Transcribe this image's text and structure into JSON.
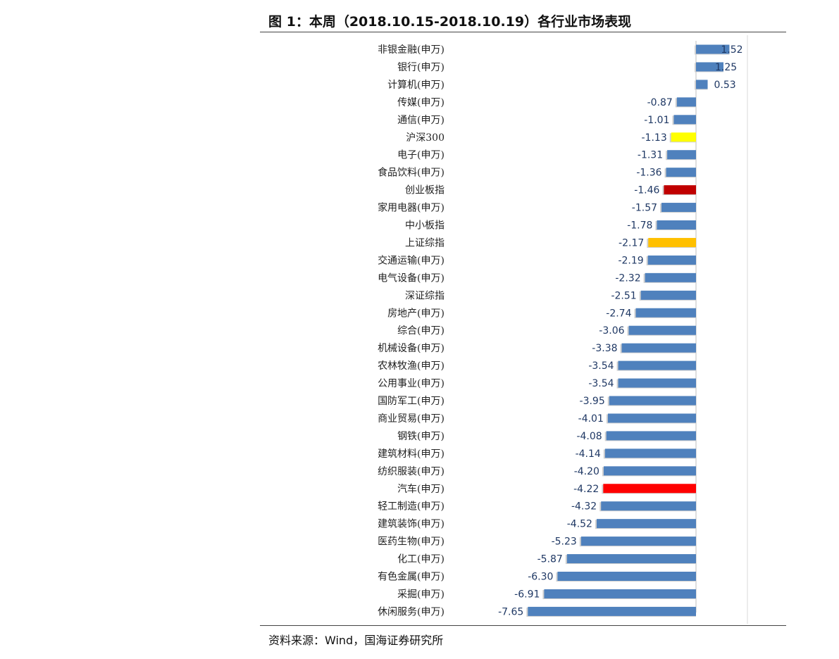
{
  "figure": {
    "title": "图 1：本周（2018.10.15-2018.10.19）各行业市场表现",
    "source": "资料来源：Wind，国海证券研究所"
  },
  "colors": {
    "default": "#4f81bd",
    "highlight": {
      "沪深300": "#ffff00",
      "创业板指": "#c00000",
      "上证综指": "#ffc000",
      "汽车(申万)": "#ff0000"
    }
  },
  "chart_data": {
    "type": "bar",
    "orientation": "horizontal",
    "categories": [
      "非银金融(申万)",
      "银行(申万)",
      "计算机(申万)",
      "传媒(申万)",
      "通信(申万)",
      "沪深300",
      "电子(申万)",
      "食品饮料(申万)",
      "创业板指",
      "家用电器(申万)",
      "中小板指",
      "上证综指",
      "交通运输(申万)",
      "电气设备(申万)",
      "深证综指",
      "房地产(申万)",
      "综合(申万)",
      "机械设备(申万)",
      "农林牧渔(申万)",
      "公用事业(申万)",
      "国防军工(申万)",
      "商业贸易(申万)",
      "钢铁(申万)",
      "建筑材料(申万)",
      "纺织服装(申万)",
      "汽车(申万)",
      "轻工制造(申万)",
      "建筑装饰(申万)",
      "医药生物(申万)",
      "化工(申万)",
      "有色金属(申万)",
      "采掘(申万)",
      "休闲服务(申万)"
    ],
    "values": [
      1.52,
      1.25,
      0.53,
      -0.87,
      -1.01,
      -1.13,
      -1.31,
      -1.36,
      -1.46,
      -1.57,
      -1.78,
      -2.17,
      -2.19,
      -2.32,
      -2.51,
      -2.74,
      -3.06,
      -3.38,
      -3.54,
      -3.54,
      -3.95,
      -4.01,
      -4.08,
      -4.14,
      -4.2,
      -4.22,
      -4.32,
      -4.52,
      -5.23,
      -5.87,
      -6.3,
      -6.91,
      -7.65
    ],
    "value_labels": [
      "1.52",
      "1.25",
      "0.53",
      "-0.87",
      "-1.01",
      "-1.13",
      "-1.31",
      "-1.36",
      "-1.46",
      "-1.57",
      "-1.78",
      "-2.17",
      "-2.19",
      "-2.32",
      "-2.51",
      "-2.74",
      "-3.06",
      "-3.38",
      "-3.54",
      "-3.54",
      "-3.95",
      "-4.01",
      "-4.08",
      "-4.14",
      "-4.20",
      "-4.22",
      "-4.32",
      "-4.52",
      "-5.23",
      "-5.87",
      "-6.30",
      "-6.91",
      "-7.65"
    ],
    "xlim": [
      -8,
      2
    ],
    "grid": false,
    "legend": "none"
  }
}
